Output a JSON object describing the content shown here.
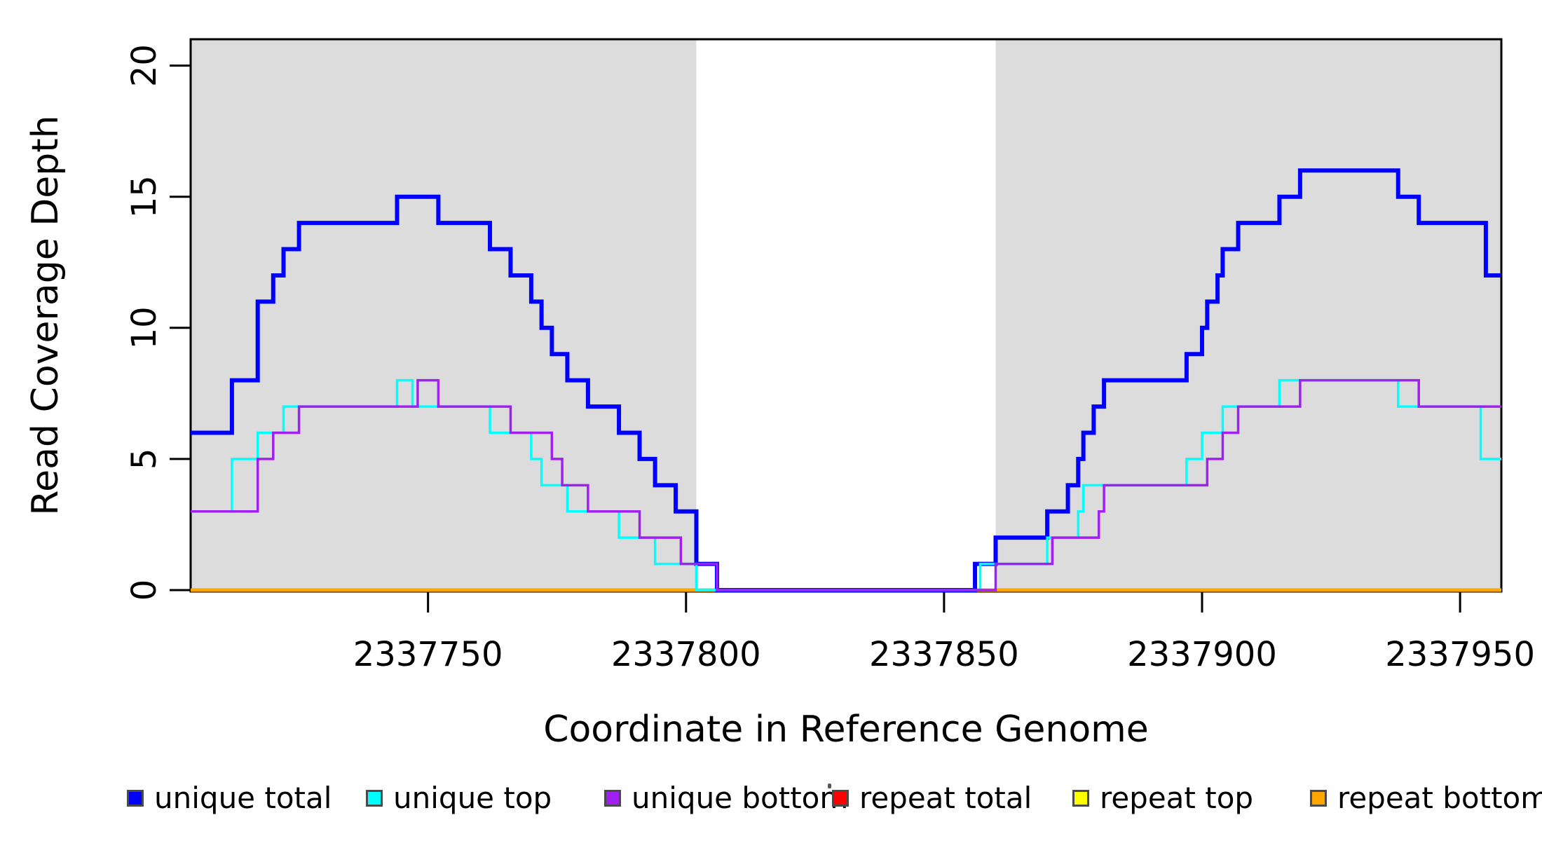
{
  "chart_data": {
    "type": "step",
    "title": "",
    "xlabel": "Coordinate in Reference Genome",
    "ylabel": "Read Coverage Depth",
    "xlim": [
      2337704,
      2337958
    ],
    "ylim": [
      0,
      21
    ],
    "xticks": [
      2337750,
      2337800,
      2337850,
      2337900,
      2337950
    ],
    "yticks": [
      0,
      5,
      10,
      15,
      20
    ],
    "grid": false,
    "legend_position": "bottom",
    "background_regions": [
      {
        "name": "shaded-region-left",
        "x0": 2337704,
        "x1": 2337802,
        "color": "#DCDCDC"
      },
      {
        "name": "gap-region",
        "x0": 2337802,
        "x1": 2337860,
        "color": "#FFFFFF"
      },
      {
        "name": "shaded-region-right",
        "x0": 2337860,
        "x1": 2337958,
        "color": "#DCDCDC"
      }
    ],
    "series": [
      {
        "name": "repeat total",
        "color": "#FF0000",
        "line_width": 4,
        "points": [
          [
            2337704,
            0
          ]
        ]
      },
      {
        "name": "repeat top",
        "color": "#FFFF00",
        "line_width": 4,
        "points": [
          [
            2337704,
            0
          ]
        ]
      },
      {
        "name": "repeat bottom",
        "color": "#FFA500",
        "line_width": 5,
        "points": [
          [
            2337704,
            0
          ]
        ]
      },
      {
        "name": "unique total",
        "color": "#0000FF",
        "line_width": 6,
        "points": [
          [
            2337704,
            6
          ],
          [
            2337712,
            8
          ],
          [
            2337717,
            11
          ],
          [
            2337720,
            12
          ],
          [
            2337722,
            13
          ],
          [
            2337725,
            14
          ],
          [
            2337744,
            15
          ],
          [
            2337752,
            14
          ],
          [
            2337762,
            13
          ],
          [
            2337766,
            12
          ],
          [
            2337770,
            11
          ],
          [
            2337772,
            10
          ],
          [
            2337774,
            9
          ],
          [
            2337777,
            8
          ],
          [
            2337781,
            7
          ],
          [
            2337787,
            6
          ],
          [
            2337791,
            5
          ],
          [
            2337794,
            4
          ],
          [
            2337798,
            3
          ],
          [
            2337802,
            1
          ],
          [
            2337806,
            0
          ],
          [
            2337856,
            1
          ],
          [
            2337860,
            2
          ],
          [
            2337870,
            3
          ],
          [
            2337874,
            4
          ],
          [
            2337876,
            5
          ],
          [
            2337877,
            6
          ],
          [
            2337879,
            7
          ],
          [
            2337881,
            8
          ],
          [
            2337897,
            9
          ],
          [
            2337900,
            10
          ],
          [
            2337901,
            11
          ],
          [
            2337903,
            12
          ],
          [
            2337904,
            13
          ],
          [
            2337907,
            14
          ],
          [
            2337915,
            15
          ],
          [
            2337919,
            16
          ],
          [
            2337938,
            15
          ],
          [
            2337942,
            14
          ],
          [
            2337955,
            12
          ]
        ]
      },
      {
        "name": "unique top",
        "color": "#00FFFF",
        "line_width": 3.5,
        "points": [
          [
            2337704,
            3
          ],
          [
            2337712,
            5
          ],
          [
            2337717,
            6
          ],
          [
            2337722,
            7
          ],
          [
            2337744,
            8
          ],
          [
            2337747,
            7
          ],
          [
            2337762,
            6
          ],
          [
            2337770,
            5
          ],
          [
            2337772,
            4
          ],
          [
            2337777,
            3
          ],
          [
            2337787,
            2
          ],
          [
            2337794,
            1
          ],
          [
            2337802,
            0
          ],
          [
            2337857,
            1
          ],
          [
            2337870,
            2
          ],
          [
            2337876,
            3
          ],
          [
            2337877,
            4
          ],
          [
            2337897,
            5
          ],
          [
            2337900,
            6
          ],
          [
            2337904,
            7
          ],
          [
            2337915,
            8
          ],
          [
            2337938,
            7
          ],
          [
            2337954,
            5
          ]
        ]
      },
      {
        "name": "unique bottom",
        "color": "#A020F0",
        "line_width": 3.5,
        "points": [
          [
            2337704,
            3
          ],
          [
            2337717,
            5
          ],
          [
            2337720,
            6
          ],
          [
            2337725,
            7
          ],
          [
            2337748,
            8
          ],
          [
            2337752,
            7
          ],
          [
            2337766,
            6
          ],
          [
            2337774,
            5
          ],
          [
            2337776,
            4
          ],
          [
            2337781,
            3
          ],
          [
            2337791,
            2
          ],
          [
            2337799,
            1
          ],
          [
            2337806,
            0
          ],
          [
            2337860,
            1
          ],
          [
            2337871,
            2
          ],
          [
            2337880,
            3
          ],
          [
            2337881,
            4
          ],
          [
            2337901,
            5
          ],
          [
            2337904,
            6
          ],
          [
            2337907,
            7
          ],
          [
            2337919,
            8
          ],
          [
            2337942,
            7
          ]
        ]
      }
    ]
  },
  "legend": {
    "items": [
      {
        "label": "unique total",
        "color": "#0000FF"
      },
      {
        "label": "unique top",
        "color": "#00FFFF"
      },
      {
        "label": "unique bottom",
        "color": "#A020F0"
      },
      {
        "label": "repeat total",
        "color": "#FF0000"
      },
      {
        "label": "repeat top",
        "color": "#FFFF00"
      },
      {
        "label": "repeat bottom",
        "color": "#FFA500"
      }
    ]
  }
}
